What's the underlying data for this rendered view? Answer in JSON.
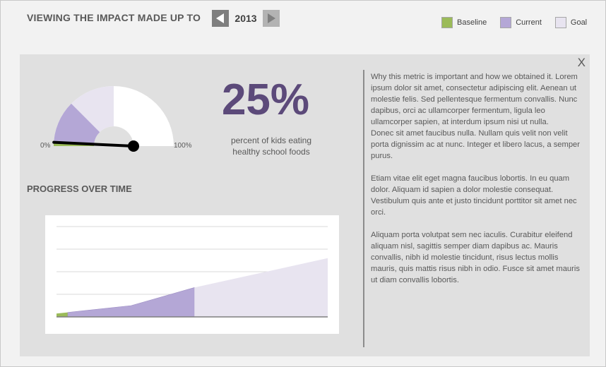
{
  "header": {
    "title": "VIEWING THE IMPACT MADE UP TO",
    "year": "2013",
    "prev_icon": "triangle-left-icon",
    "next_icon": "triangle-right-icon"
  },
  "legend": [
    {
      "label": "Baseline",
      "color": "#9bbb59"
    },
    {
      "label": "Current",
      "color": "#b4a7d6"
    },
    {
      "label": "Goal",
      "color": "#e8e4f0"
    }
  ],
  "panel": {
    "close_label": "X",
    "gauge": {
      "min_label": "0%",
      "max_label": "100%",
      "baseline_value": 0.02,
      "current_value": 0.25,
      "goal_value": 0.5,
      "needle_value": 0.02
    },
    "metric": {
      "value": "25%",
      "description_line1": "percent of kids eating",
      "description_line2": "healthy school foods"
    },
    "progress_title": "PROGRESS OVER TIME",
    "description": [
      "Why this metric is important and how we obtained it. Lorem ipsum dolor sit amet, consectetur adipiscing elit. Aenean ut molestie felis. Sed pellentesque fermentum convallis. Nunc dapibus, orci ac ullamcorper fermentum, ligula leo ullamcorper sapien, at interdum ipsum nisi ut nulla.",
      "Donec sit amet faucibus nulla. Nullam quis velit non velit porta dignissim ac at nunc. Integer et libero lacus, a semper purus.",
      "Etiam vitae elit eget magna faucibus lobortis. In eu quam dolor. Aliquam id sapien a dolor molestie consequat. Vestibulum quis ante et justo tincidunt porttitor sit amet nec orci.",
      "Aliquam porta volutpat sem nec iaculis. Curabitur eleifend aliquam nisl, sagittis semper diam dapibus ac. Mauris convallis, nibh id molestie tincidunt, risus lectus mollis mauris, quis mattis risus nibh in odio. Fusce sit amet mauris ut diam convallis lobortis."
    ]
  },
  "chart_data": {
    "type": "area",
    "title": "",
    "xlabel": "",
    "ylabel": "",
    "x": [
      0,
      1,
      2,
      3,
      4,
      5,
      6,
      7,
      8,
      9,
      10,
      11,
      12
    ],
    "ylim": [
      0,
      40
    ],
    "grid": true,
    "series": [
      {
        "role": "baseline",
        "color": "#9bbb59",
        "x": [
          0,
          0.5
        ],
        "values": [
          1.5,
          2
        ]
      },
      {
        "role": "current",
        "color": "#b4a7d6",
        "x": [
          0.5,
          3.3,
          6.1
        ],
        "values": [
          2,
          5,
          13
        ]
      },
      {
        "role": "goal",
        "color": "#e8e4f0",
        "x": [
          6.1,
          12
        ],
        "values": [
          13,
          26
        ]
      }
    ]
  }
}
